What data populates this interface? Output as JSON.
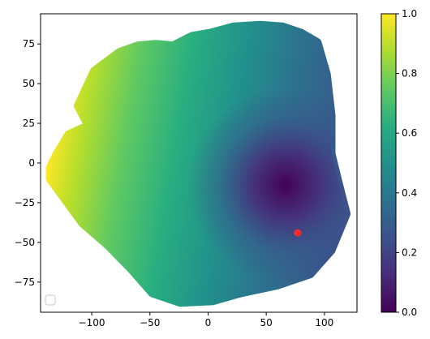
{
  "chart_data": {
    "type": "scatter",
    "title": "",
    "xlabel": "",
    "ylabel": "",
    "xlim": [
      -144,
      128
    ],
    "ylim": [
      -94,
      94
    ],
    "x_ticks": [
      -100,
      -50,
      0,
      50,
      100
    ],
    "y_ticks": [
      -75,
      -50,
      -25,
      0,
      25,
      50,
      75
    ],
    "grid": false,
    "colormap": "viridis",
    "colorbar": {
      "range": [
        0,
        1
      ],
      "ticks": [
        "0.0",
        "0.2",
        "0.4",
        "0.6",
        "0.8",
        "1.0"
      ]
    },
    "region_outline": [
      [
        -136,
        -3
      ],
      [
        -130,
        6
      ],
      [
        -120,
        18
      ],
      [
        -108,
        22
      ],
      [
        -96,
        14
      ],
      [
        -112,
        36
      ],
      [
        -98,
        58
      ],
      [
        -76,
        70
      ],
      [
        -60,
        74
      ],
      [
        -45,
        75
      ],
      [
        -30,
        74
      ],
      [
        -14,
        80
      ],
      [
        2,
        82
      ],
      [
        22,
        86
      ],
      [
        45,
        87
      ],
      [
        64,
        86
      ],
      [
        80,
        82
      ],
      [
        94,
        76
      ],
      [
        102,
        56
      ],
      [
        106,
        30
      ],
      [
        106,
        6
      ],
      [
        112,
        -12
      ],
      [
        119,
        -32
      ],
      [
        106,
        -55
      ],
      [
        88,
        -70
      ],
      [
        60,
        -77
      ],
      [
        28,
        -82
      ],
      [
        4,
        -87
      ],
      [
        -24,
        -88
      ],
      [
        -48,
        -82
      ],
      [
        -66,
        -67
      ],
      [
        -86,
        -52
      ],
      [
        -108,
        -38
      ],
      [
        -124,
        -22
      ],
      [
        -136,
        -10
      ]
    ],
    "minimum_point": {
      "x": 77,
      "y": -44,
      "value": 0.0,
      "color": "#ff0000"
    },
    "colors": {
      "yellow": "#fde725",
      "green": "#7ad151",
      "teal": "#22a884",
      "blue": "#2a788e",
      "indigo": "#414487",
      "purple": "#440154",
      "marker": "#ff2a2a"
    },
    "legend": {
      "placement": "lower-left",
      "entries": []
    }
  }
}
